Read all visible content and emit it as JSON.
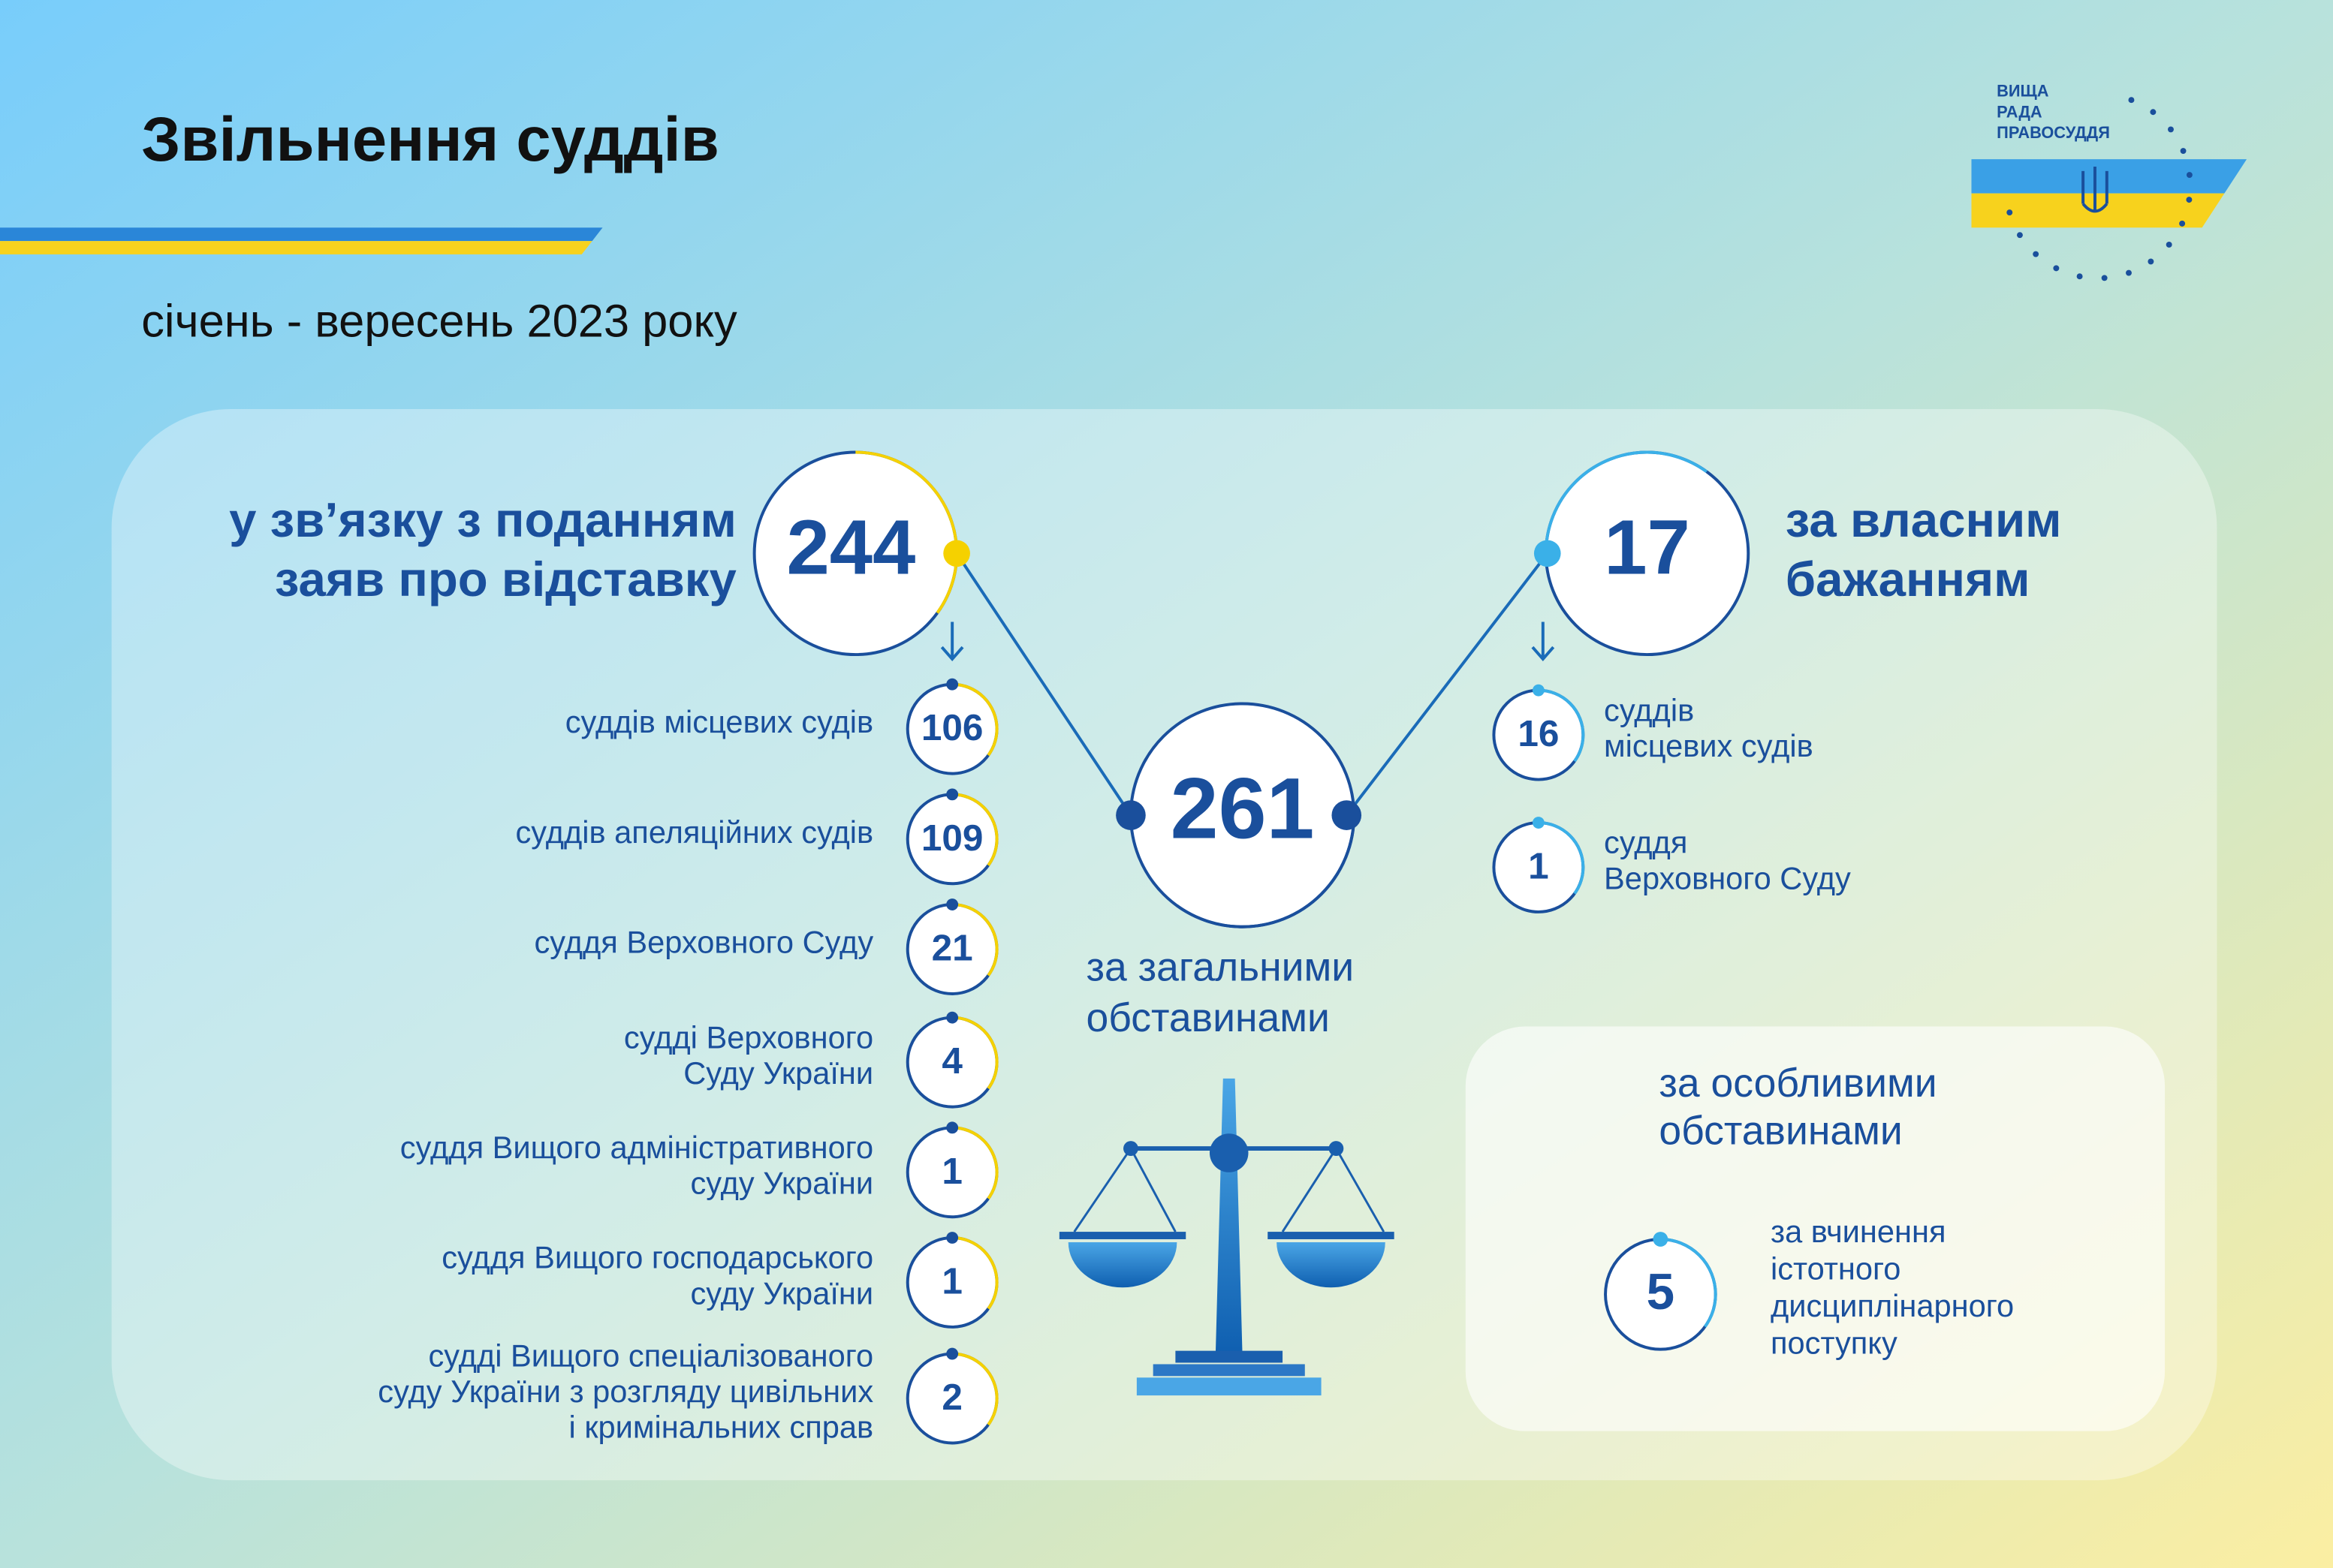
{
  "header": {
    "title": "Звільнення суддів",
    "subtitle": "січень - вересень 2023 року"
  },
  "logo": {
    "lines": [
      "ВИЩА",
      "РАДА",
      "ПРАВОСУДДЯ"
    ]
  },
  "resignation": {
    "label": [
      "у зв’язку з поданням",
      "заяв про відставку"
    ],
    "total": 244,
    "items": [
      {
        "label": [
          "суддів місцевих судів"
        ],
        "value": 106
      },
      {
        "label": [
          "суддів апеляційних судів"
        ],
        "value": 109
      },
      {
        "label": [
          "суддя Верховного Суду"
        ],
        "value": 21
      },
      {
        "label": [
          "судді Верховного",
          "Суду України"
        ],
        "value": 4
      },
      {
        "label": [
          "суддя Вищого адміністративного",
          "суду України"
        ],
        "value": 1
      },
      {
        "label": [
          "суддя Вищого господарського",
          "суду України"
        ],
        "value": 1
      },
      {
        "label": [
          "судді Вищого спеціалізованого",
          "суду України з розгляду цивільних",
          "і кримінальних справ"
        ],
        "value": 2
      }
    ]
  },
  "general": {
    "total": 261,
    "label": [
      "за загальними",
      "обставинами"
    ]
  },
  "own_will": {
    "label": [
      "за власним",
      "бажанням"
    ],
    "total": 17,
    "items": [
      {
        "label": [
          "суддів",
          "місцевих судів"
        ],
        "value": 16
      },
      {
        "label": [
          "суддя",
          "Верховного Суду"
        ],
        "value": 1
      }
    ]
  },
  "special": {
    "title": [
      "за особливими",
      "обставинами"
    ],
    "items": [
      {
        "label": [
          "за вчинення",
          "істотного",
          "дисциплінарного",
          "поступку"
        ],
        "value": 5
      }
    ]
  }
}
